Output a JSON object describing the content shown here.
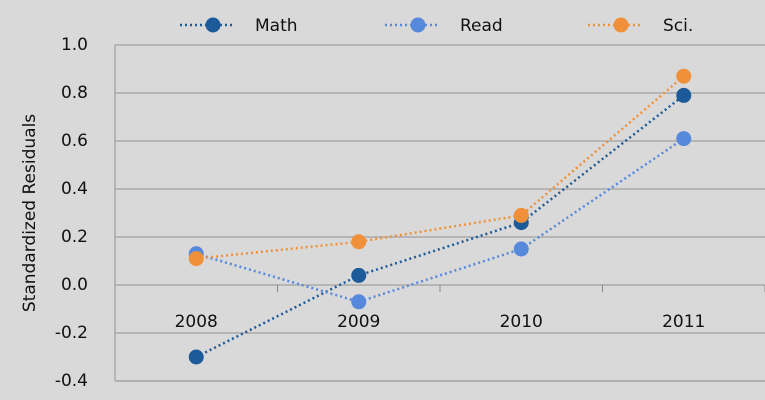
{
  "chart_data": {
    "type": "line",
    "y_label": "Standardized Residuals",
    "categories": [
      "2008",
      "2009",
      "2010",
      "2011"
    ],
    "series": [
      {
        "name": "Math",
        "color": "#1c5a99",
        "values": [
          -0.3,
          0.04,
          0.26,
          0.79
        ]
      },
      {
        "name": "Read",
        "color": "#5688dc",
        "values": [
          0.13,
          -0.07,
          0.15,
          0.61
        ]
      },
      {
        "name": "Sci.",
        "color": "#f0913a",
        "values": [
          0.11,
          0.18,
          0.29,
          0.87
        ]
      }
    ],
    "ylim": [
      -0.4,
      1.0
    ],
    "yticks": [
      {
        "value": -0.4,
        "label": "-0.4"
      },
      {
        "value": -0.2,
        "label": "-0.2"
      },
      {
        "value": 0,
        "label": "0.0"
      },
      {
        "value": 0.2,
        "label": "0.2"
      },
      {
        "value": 0.4,
        "label": "0.4"
      },
      {
        "value": 0.6,
        "label": "0.6"
      },
      {
        "value": 0.8,
        "label": "0.8"
      },
      {
        "value": 1.0,
        "label": "1.0"
      }
    ],
    "grid": true,
    "legend": "top"
  }
}
